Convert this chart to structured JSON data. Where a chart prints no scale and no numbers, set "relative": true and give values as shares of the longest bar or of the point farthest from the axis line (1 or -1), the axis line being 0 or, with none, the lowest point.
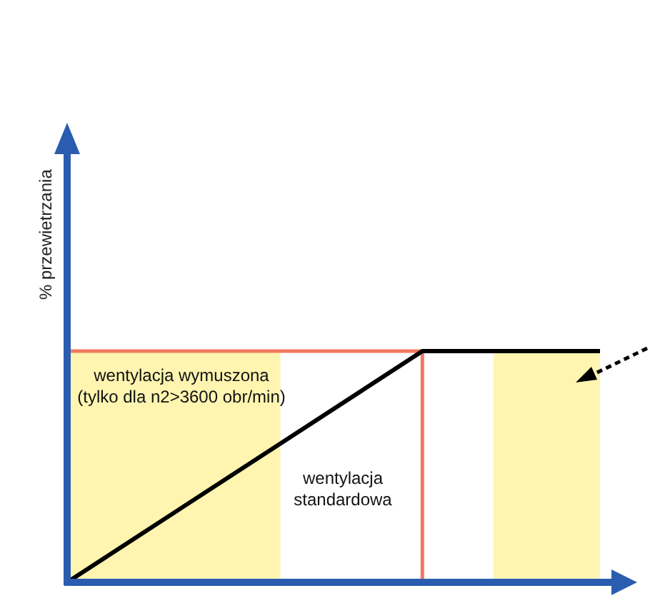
{
  "chart_data": {
    "type": "line",
    "relative": true,
    "ylabel": "% przewietrzania",
    "categories": [
      null,
      null,
      null,
      null,
      null,
      null,
      null,
      null,
      null,
      null,
      null,
      null,
      null,
      null,
      null,
      null
    ],
    "series": [
      {
        "type": "area",
        "color": "#fff5b0",
        "values": [
          1,
          1,
          1,
          1,
          1,
          1,
          1,
          null,
          null,
          null,
          null,
          null,
          null,
          null,
          null,
          null
        ]
      },
      {
        "type": "area",
        "color": "#fff5b0",
        "values": [
          null,
          null,
          null,
          null,
          null,
          null,
          null,
          null,
          null,
          null,
          null,
          null,
          1,
          1,
          1,
          1
        ]
      },
      {
        "color": "#000000",
        "values": [
          0,
          null,
          null,
          null,
          null,
          null,
          null,
          null,
          null,
          null,
          1,
          null,
          null,
          null,
          null,
          1
        ]
      }
    ],
    "marker": "none",
    "ref_lines": [
      {
        "axis": "y",
        "value": 1,
        "color": "#f07860"
      }
    ],
    "annotations": [
      "wentylacja wymuszona (tylko dla n2>3600 obr/min)",
      "wentylacja standardowa"
    ]
  }
}
